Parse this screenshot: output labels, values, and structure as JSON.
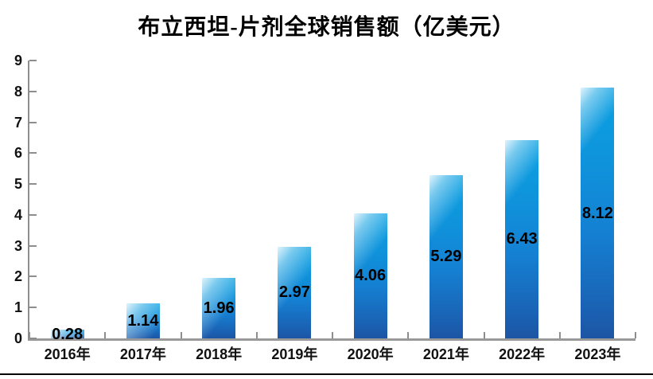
{
  "chart_data": {
    "type": "bar",
    "title": "布立西坦-片剂全球销售额（亿美元）",
    "categories": [
      "2016年",
      "2017年",
      "2018年",
      "2019年",
      "2020年",
      "2021年",
      "2022年",
      "2023年"
    ],
    "values": [
      0.28,
      1.14,
      1.96,
      2.97,
      4.06,
      5.29,
      6.43,
      8.12
    ],
    "data_labels": [
      "0.28",
      "1.14",
      "1.96",
      "2.97",
      "4.06",
      "5.29",
      "6.43",
      "8.12"
    ],
    "data_label_position": "center",
    "xlabel": "",
    "ylabel": "",
    "ylim": [
      0,
      9
    ],
    "y_ticks": [
      0,
      1,
      2,
      3,
      4,
      5,
      6,
      7,
      8,
      9
    ],
    "grid": false,
    "legend": null,
    "colors": {
      "bar_top": "#0ba1e2",
      "bar_bottom": "#1d55a4",
      "bar_highlight": "#d2eefa",
      "axis": "#8e8e8e",
      "text": "#000000"
    }
  }
}
